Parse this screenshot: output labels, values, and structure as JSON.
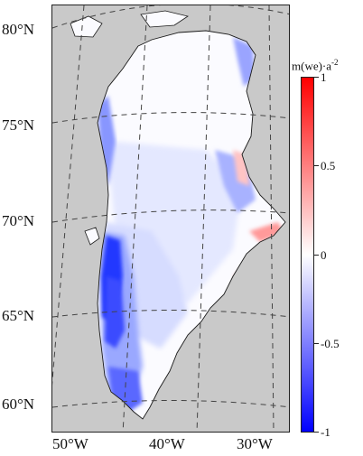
{
  "lat_labels": [
    "80°N",
    "75°N",
    "70°N",
    "65°N",
    "60°N"
  ],
  "lon_labels": [
    "50°W",
    "40°W",
    "30°W"
  ],
  "colorbar": {
    "title": "m(we)·a",
    "title_exponent": "-2",
    "ticks": [
      "1",
      "0.5",
      "0",
      "-0.5",
      "-1"
    ],
    "range": [
      -1,
      1
    ],
    "colors": {
      "max": "#ff0000",
      "mid": "#ffffff",
      "min": "#0000ff"
    }
  },
  "colors": {
    "ocean": "#c9c9c9",
    "coastline": "#1a1a1a",
    "graticule": "#444444"
  }
}
